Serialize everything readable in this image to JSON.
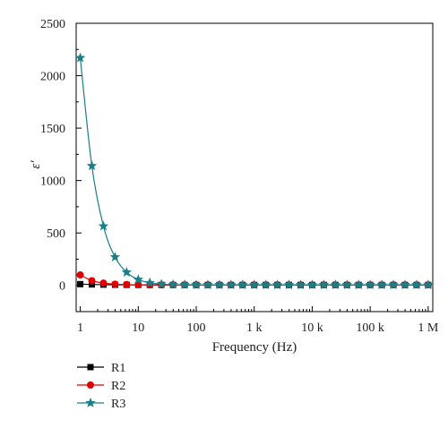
{
  "chart_data": {
    "type": "line",
    "title": "",
    "xlabel": "Frequency (Hz)",
    "ylabel": "ε′",
    "x_scale": "log",
    "xlim": [
      0.85,
      1200000
    ],
    "ylim": [
      -250,
      2500
    ],
    "x_ticks": [
      {
        "value": 1,
        "label": "1"
      },
      {
        "value": 10,
        "label": "10"
      },
      {
        "value": 100,
        "label": "100"
      },
      {
        "value": 1000,
        "label": "1 k"
      },
      {
        "value": 10000,
        "label": "10 k"
      },
      {
        "value": 100000,
        "label": "100 k"
      },
      {
        "value": 1000000,
        "label": "1 M"
      }
    ],
    "y_ticks": [
      {
        "value": 0,
        "label": "0"
      },
      {
        "value": 500,
        "label": "500"
      },
      {
        "value": 1000,
        "label": "1000"
      },
      {
        "value": 1500,
        "label": "1500"
      },
      {
        "value": 2000,
        "label": "2000"
      },
      {
        "value": 2500,
        "label": "2500"
      }
    ],
    "grid": false,
    "legend_position": "bottom-left",
    "x": [
      1,
      1.585,
      2.512,
      3.981,
      6.31,
      10,
      15.85,
      25.12,
      39.81,
      63.1,
      100,
      158.5,
      251.2,
      398.1,
      631,
      1000,
      1585,
      2512,
      3981,
      6310,
      10000,
      15850,
      25120,
      39810,
      63100,
      100000,
      158500,
      251200,
      398100,
      631000,
      1000000
    ],
    "series": [
      {
        "name": "R1",
        "color": "#000000",
        "marker": "square",
        "values": [
          12,
          9,
          7,
          6,
          5,
          5,
          4,
          4,
          4,
          4,
          4,
          4,
          4,
          4,
          4,
          4,
          4,
          4,
          4,
          4,
          4,
          4,
          4,
          4,
          4,
          4,
          4,
          4,
          4,
          4,
          4
        ]
      },
      {
        "name": "R2",
        "color": "#e00000",
        "marker": "circle",
        "values": [
          100,
          45,
          22,
          12,
          8,
          6,
          5,
          5,
          5,
          5,
          5,
          5,
          5,
          5,
          5,
          5,
          5,
          5,
          5,
          5,
          5,
          5,
          5,
          5,
          5,
          5,
          5,
          5,
          5,
          5,
          5
        ]
      },
      {
        "name": "R3",
        "color": "#1a7f86",
        "marker": "star",
        "values": [
          2170,
          1140,
          565,
          270,
          125,
          55,
          25,
          12,
          8,
          6,
          5,
          5,
          5,
          5,
          5,
          5,
          5,
          5,
          5,
          5,
          5,
          5,
          5,
          5,
          5,
          5,
          5,
          5,
          5,
          5,
          5
        ]
      }
    ]
  }
}
